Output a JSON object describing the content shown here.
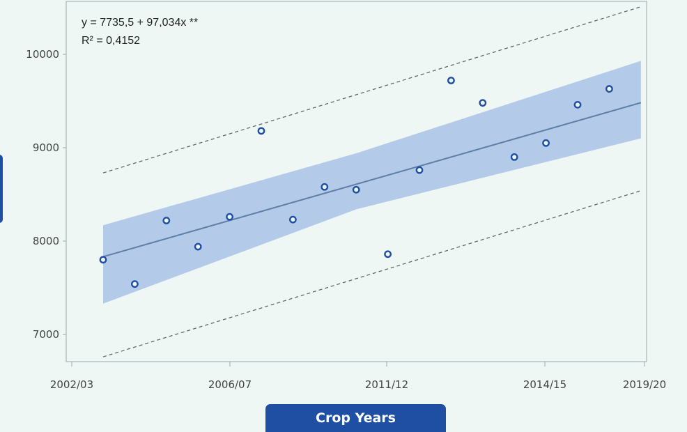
{
  "chart_data": {
    "type": "scatter",
    "annotations": [
      "y = 7735,5 + 97,034x **",
      "R² = 0,4152"
    ],
    "xlabel": "Crop Years",
    "ylabel": "",
    "x_tick_labels": [
      "2002/03",
      "2006/07",
      "2011/12",
      "2014/15",
      "2019/20"
    ],
    "y_tick_labels": [
      "7000",
      "8000",
      "9000",
      "10000"
    ],
    "ylim": [
      6700,
      10500
    ],
    "grid": false,
    "legend": "none",
    "x_index": [
      1,
      2,
      3,
      4,
      5,
      6,
      7,
      8,
      9,
      10,
      11,
      12,
      13,
      14,
      15,
      16,
      17,
      18
    ],
    "points": [
      7800,
      7540,
      8220,
      7940,
      8260,
      9180,
      8230,
      8580,
      8550,
      7860,
      8760,
      9720,
      9480,
      8900,
      9050,
      9460,
      9630
    ],
    "fit": {
      "intercept": 7735.5,
      "slope": 97.034
    },
    "confidence_band": {
      "x_index": [
        1,
        9,
        18
      ],
      "upper": [
        8170,
        8940,
        9930
      ],
      "lower": [
        7330,
        8340,
        9100
      ]
    },
    "prediction_interval": {
      "x_index": [
        1,
        18
      ],
      "upper": [
        8730,
        10510
      ],
      "lower": [
        6760,
        8540
      ]
    },
    "point_x_index": [
      1,
      2,
      3,
      4,
      5,
      6,
      7,
      8,
      9,
      10,
      11,
      12,
      13,
      14,
      15,
      16,
      17
    ],
    "colors": {
      "point": "#1e4fa3",
      "fit_line": "#5f7fa6",
      "band": "#a9c2e6",
      "dashed": "#666666",
      "badge": "#1e4fa3"
    }
  }
}
